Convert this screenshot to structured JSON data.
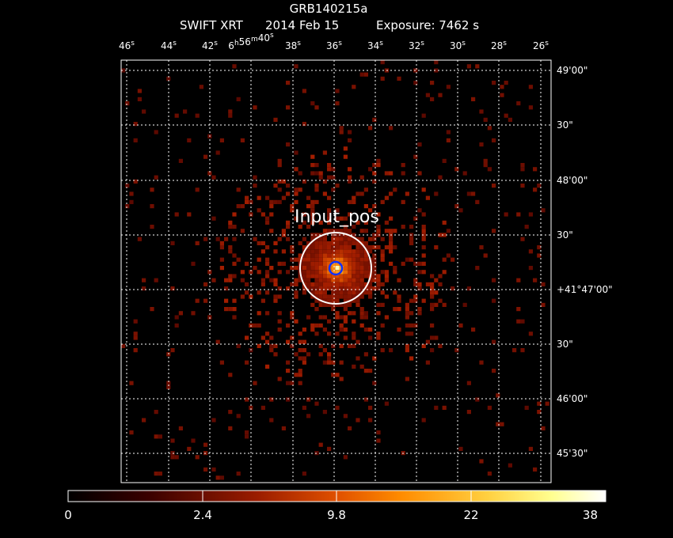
{
  "header": {
    "line1": "GRB140215a",
    "instrument": "SWIFT XRT",
    "date": "2014 Feb 15",
    "exposure": "Exposure: 7462 s"
  },
  "chart_data": {
    "type": "heatmap",
    "title": "GRB140215a",
    "xlabel": "",
    "ylabel": "",
    "grid": true,
    "colormap": "heat",
    "ra_ticks": [
      {
        "label": "46",
        "unit": "s"
      },
      {
        "label": "44",
        "unit": "s"
      },
      {
        "label": "42",
        "unit": "s"
      },
      {
        "label": "6",
        "unit": "h",
        "label2": "56",
        "unit2": "m",
        "label3": "40",
        "unit3": "s"
      },
      {
        "label": "38",
        "unit": "s"
      },
      {
        "label": "36",
        "unit": "s"
      },
      {
        "label": "34",
        "unit": "s"
      },
      {
        "label": "32",
        "unit": "s"
      },
      {
        "label": "30",
        "unit": "s"
      },
      {
        "label": "28",
        "unit": "s"
      },
      {
        "label": "26",
        "unit": "s"
      }
    ],
    "dec_ticks": [
      "49'00\"",
      "30\"",
      "48'00\"",
      "30\"",
      "+41°47'00\"",
      "30\"",
      "46'00\"",
      "45'30\""
    ],
    "colorbar": {
      "labels": [
        "0",
        "2.4",
        "9.8",
        "22",
        "38"
      ],
      "min": 0,
      "max": 38
    },
    "source": {
      "ra": "6h56m36.5s",
      "dec": "+41°47'12\"",
      "peak_counts": 38
    },
    "regions": [
      {
        "name": "Input_pos",
        "color": "#ffffff"
      },
      {
        "name": "",
        "color": "#1030ff"
      }
    ]
  }
}
